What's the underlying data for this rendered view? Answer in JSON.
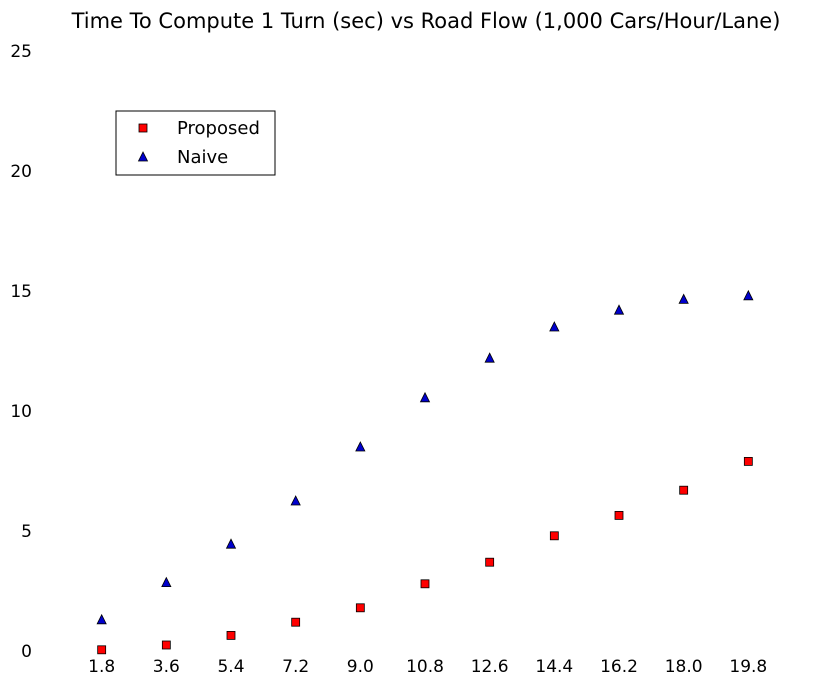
{
  "chart_data": {
    "type": "scatter",
    "title": "Time To Compute 1 Turn (sec) vs Road Flow (1,000 Cars/Hour/Lane)",
    "xlabel": "",
    "ylabel": "",
    "categories": [
      "1.8",
      "3.6",
      "5.4",
      "7.2",
      "9.0",
      "10.8",
      "12.6",
      "14.4",
      "16.2",
      "18.0",
      "19.8"
    ],
    "x": [
      1.8,
      3.6,
      5.4,
      7.2,
      9.0,
      10.8,
      12.6,
      14.4,
      16.2,
      18.0,
      19.8
    ],
    "xlim": [
      0.0,
      21.6
    ],
    "ylim": [
      0,
      25
    ],
    "yticks": [
      0,
      5,
      10,
      15,
      20,
      25
    ],
    "grid": false,
    "legend_position": "upper-left",
    "series": [
      {
        "name": "Proposed",
        "marker": "square",
        "color": "#ff0000",
        "values": [
          0.05,
          0.25,
          0.65,
          1.2,
          1.8,
          2.8,
          3.7,
          4.8,
          5.65,
          6.7,
          7.9
        ]
      },
      {
        "name": "Naive",
        "marker": "triangle",
        "color": "#0000cc",
        "values": [
          1.3,
          2.85,
          4.45,
          6.25,
          8.5,
          10.55,
          12.2,
          13.5,
          14.2,
          14.65,
          14.8
        ]
      }
    ]
  }
}
